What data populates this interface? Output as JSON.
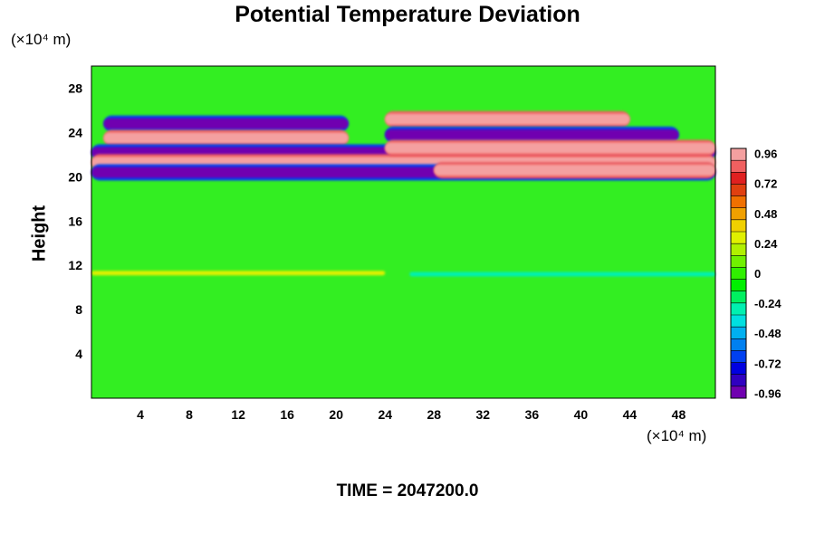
{
  "chart_data": {
    "type": "heatmap",
    "title": "Potential Temperature Deviation",
    "xlabel": "",
    "ylabel": "Height",
    "x_unit": "(×10⁴ m)",
    "y_unit": "(×10⁴ m)",
    "xlim": [
      0,
      51
    ],
    "ylim": [
      0,
      30
    ],
    "x_ticks": [
      4,
      8,
      12,
      16,
      20,
      24,
      28,
      32,
      36,
      40,
      44,
      48
    ],
    "y_ticks": [
      4,
      8,
      12,
      16,
      20,
      24,
      28
    ],
    "colorbar": {
      "range": [
        -1.0,
        1.0
      ],
      "tick_values": [
        0.96,
        0.72,
        0.48,
        0.24,
        0,
        -0.24,
        -0.48,
        -0.72,
        -0.96
      ],
      "tick_labels": [
        "0.96",
        "0.72",
        "0.48",
        "0.24",
        "0",
        "-0.24",
        "-0.48",
        "-0.72",
        "-0.96"
      ],
      "colors_top_to_bottom": [
        "#f4a0a0",
        "#f06060",
        "#e02020",
        "#e04010",
        "#f07000",
        "#f0a000",
        "#f0d000",
        "#e0f000",
        "#b0f000",
        "#70f000",
        "#30f000",
        "#00f000",
        "#00f060",
        "#00f0b0",
        "#00e0e0",
        "#00b0f0",
        "#0080f0",
        "#0040f0",
        "#0000e0",
        "#3000c0",
        "#7000b0"
      ]
    },
    "bands": [
      {
        "y_center": 24.8,
        "x_range": [
          1,
          21
        ],
        "value": -0.96
      },
      {
        "y_center": 23.5,
        "x_range": [
          1,
          21
        ],
        "value": 0.96
      },
      {
        "y_center": 22.2,
        "x_range": [
          0,
          51
        ],
        "value": -0.96
      },
      {
        "y_center": 21.3,
        "x_range": [
          0,
          51
        ],
        "value": 0.96
      },
      {
        "y_center": 20.4,
        "x_range": [
          0,
          51
        ],
        "value": -0.96
      },
      {
        "y_center": 25.2,
        "x_range": [
          24,
          44
        ],
        "value": 0.96
      },
      {
        "y_center": 23.8,
        "x_range": [
          24,
          48
        ],
        "value": -0.96
      },
      {
        "y_center": 22.6,
        "x_range": [
          24,
          51
        ],
        "value": 0.96
      },
      {
        "y_center": 20.6,
        "x_range": [
          28,
          51
        ],
        "value": 0.96
      },
      {
        "y_center": 11.3,
        "x_range": [
          0,
          24
        ],
        "value": 0.3
      },
      {
        "y_center": 11.2,
        "x_range": [
          26,
          51
        ],
        "value": -0.3
      }
    ]
  },
  "footer": {
    "time_label": "TIME = 2047200.0"
  }
}
